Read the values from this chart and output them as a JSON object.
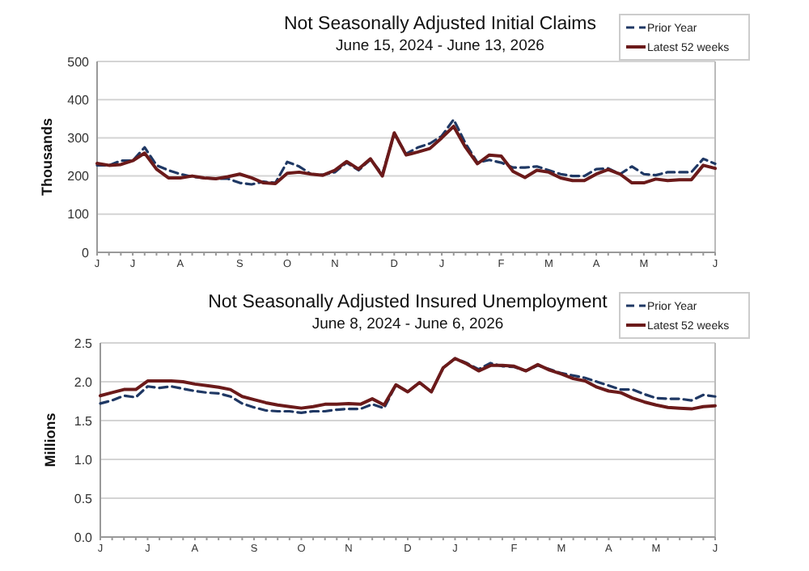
{
  "chart_data": [
    {
      "type": "line",
      "title": "Not Seasonally Adjusted Initial Claims",
      "subtitle": "June 15, 2024 - June 13, 2026",
      "ylabel": "Thousands",
      "categories": [
        "J",
        null,
        null,
        "J",
        null,
        null,
        null,
        "A",
        null,
        null,
        null,
        null,
        "S",
        null,
        null,
        null,
        "O",
        null,
        null,
        null,
        "N",
        null,
        null,
        null,
        null,
        "D",
        null,
        null,
        null,
        "J",
        null,
        null,
        null,
        null,
        "F",
        null,
        null,
        null,
        "M",
        null,
        null,
        null,
        "A",
        null,
        null,
        null,
        "M",
        null,
        null,
        null,
        null,
        null,
        "J"
      ],
      "series": [
        {
          "name": "Prior Year",
          "color": "#1f3864",
          "line_style": "dashed",
          "values": [
            228,
            228,
            240,
            240,
            275,
            228,
            215,
            205,
            198,
            195,
            193,
            193,
            182,
            178,
            185,
            182,
            237,
            225,
            205,
            203,
            210,
            235,
            215,
            243,
            205,
            310,
            258,
            275,
            285,
            305,
            348,
            285,
            235,
            242,
            235,
            222,
            222,
            225,
            215,
            205,
            200,
            200,
            218,
            220,
            205,
            225,
            205,
            202,
            210,
            210,
            210,
            245,
            232
          ]
        },
        {
          "name": "Latest 52 weeks",
          "color": "#6b1a1a",
          "line_style": "solid",
          "values": [
            233,
            228,
            230,
            240,
            260,
            218,
            195,
            195,
            200,
            195,
            193,
            198,
            205,
            195,
            182,
            180,
            207,
            210,
            205,
            202,
            215,
            238,
            218,
            245,
            200,
            313,
            255,
            263,
            272,
            300,
            330,
            275,
            232,
            255,
            252,
            212,
            196,
            215,
            210,
            195,
            188,
            188,
            205,
            217,
            205,
            182,
            182,
            192,
            188,
            190,
            190,
            228,
            220
          ]
        }
      ],
      "ylim": [
        0,
        500
      ],
      "yticks": [
        0,
        100,
        200,
        300,
        400,
        500
      ],
      "grid": "y",
      "legend": "top right",
      "marker": "none"
    },
    {
      "type": "line",
      "title": "Not Seasonally Adjusted Insured Unemployment",
      "subtitle": "June 8, 2024  - June 6, 2026",
      "ylabel": "Millions",
      "categories": [
        "J",
        null,
        null,
        null,
        "J",
        null,
        null,
        null,
        "A",
        null,
        null,
        null,
        null,
        "S",
        null,
        null,
        null,
        "O",
        null,
        null,
        null,
        "N",
        null,
        null,
        null,
        null,
        "D",
        null,
        null,
        null,
        "J",
        null,
        null,
        null,
        null,
        "F",
        null,
        null,
        null,
        "M",
        null,
        null,
        null,
        "A",
        null,
        null,
        null,
        "M",
        null,
        null,
        null,
        null,
        "J"
      ],
      "series": [
        {
          "name": "Prior Year",
          "color": "#1f3864",
          "line_style": "dashed",
          "values": [
            1.72,
            1.76,
            1.82,
            1.8,
            1.94,
            1.92,
            1.94,
            1.91,
            1.88,
            1.86,
            1.85,
            1.81,
            1.72,
            1.67,
            1.63,
            1.62,
            1.62,
            1.6,
            1.62,
            1.62,
            1.64,
            1.65,
            1.65,
            1.71,
            1.66,
            1.96,
            1.87,
            1.99,
            1.87,
            2.18,
            2.3,
            2.24,
            2.16,
            2.24,
            2.2,
            2.19,
            2.14,
            2.21,
            2.16,
            2.11,
            2.08,
            2.05,
            2.0,
            1.95,
            1.9,
            1.9,
            1.84,
            1.79,
            1.78,
            1.78,
            1.76,
            1.83,
            1.81
          ]
        },
        {
          "name": "Latest 52 weeks",
          "color": "#6b1a1a",
          "line_style": "solid",
          "values": [
            1.82,
            1.86,
            1.9,
            1.9,
            2.01,
            2.01,
            2.01,
            2.0,
            1.97,
            1.95,
            1.93,
            1.9,
            1.81,
            1.77,
            1.73,
            1.7,
            1.68,
            1.66,
            1.68,
            1.71,
            1.71,
            1.72,
            1.71,
            1.78,
            1.7,
            1.96,
            1.87,
            1.99,
            1.87,
            2.18,
            2.3,
            2.23,
            2.14,
            2.21,
            2.21,
            2.2,
            2.14,
            2.22,
            2.15,
            2.1,
            2.04,
            2.01,
            1.93,
            1.88,
            1.86,
            1.79,
            1.74,
            1.7,
            1.67,
            1.66,
            1.65,
            1.68,
            1.69
          ]
        }
      ],
      "ylim": [
        0,
        2.5
      ],
      "yticks": [
        {
          "value": 0,
          "label": "0.0"
        },
        {
          "value": 0.5,
          "label": "0.5"
        },
        {
          "value": 1,
          "label": "1.0"
        },
        {
          "value": 1.5,
          "label": "1.5"
        },
        {
          "value": 2,
          "label": "2.0"
        },
        {
          "value": 2.5,
          "label": "2.5"
        }
      ],
      "grid": "y",
      "legend": "top right",
      "marker": "none"
    }
  ]
}
